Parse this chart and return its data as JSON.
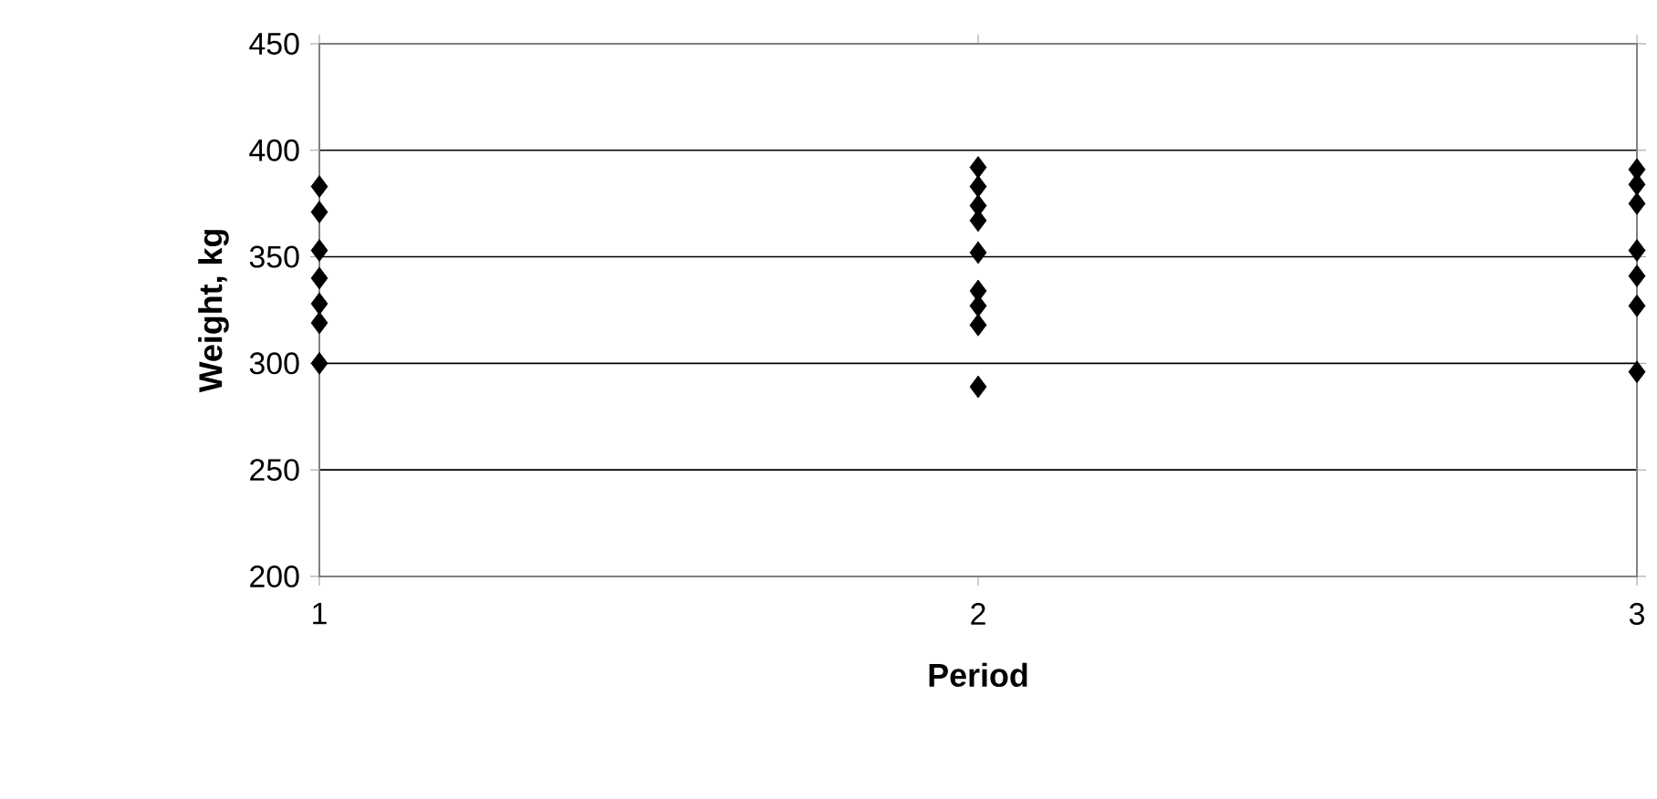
{
  "chart_data": {
    "type": "scatter",
    "xlabel": "Period",
    "ylabel": "Weight, kg",
    "x": [
      1,
      1,
      1,
      1,
      1,
      1,
      1,
      2,
      2,
      2,
      2,
      2,
      2,
      2,
      2,
      2,
      3,
      3,
      3,
      3,
      3,
      3,
      3
    ],
    "values": [
      383,
      371,
      353,
      340,
      328,
      319,
      300,
      392,
      383,
      374,
      367,
      352,
      334,
      327,
      318,
      289,
      391,
      384,
      375,
      353,
      341,
      327,
      296
    ],
    "color": "#000000",
    "marker": "diamond",
    "xlim": [
      1,
      3
    ],
    "xticks": [
      1,
      2,
      3
    ],
    "ylim": [
      200,
      450
    ],
    "yticks": [
      200,
      250,
      300,
      350,
      400,
      450
    ],
    "grid": "y"
  }
}
